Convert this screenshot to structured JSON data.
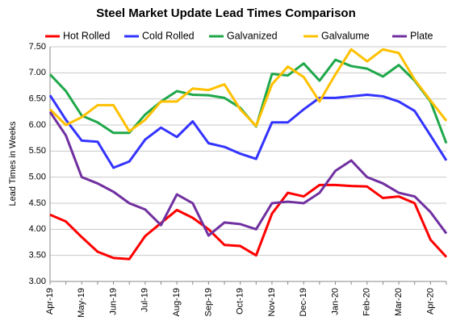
{
  "chart_data": {
    "type": "line",
    "title": "Steel Market Update Lead Times Comparison",
    "y_label": "Lead Times in Weeks",
    "categories": [
      "Apr-19",
      null,
      "May-19",
      null,
      "Jun-19",
      null,
      "Jul-19",
      null,
      "Aug-19",
      null,
      "Sep-19",
      null,
      "Oct-19",
      null,
      "Nov-19",
      null,
      "Dec-19",
      null,
      "Jan-20",
      null,
      "Feb-20",
      null,
      "Mar-20",
      null,
      "Apr-20",
      null
    ],
    "series": [
      {
        "name": "Hot Rolled",
        "color": "#ff0000",
        "values": [
          4.28,
          4.15,
          3.85,
          3.57,
          3.45,
          3.43,
          3.87,
          4.12,
          4.37,
          4.22,
          4.0,
          3.7,
          3.68,
          3.5,
          4.3,
          4.7,
          4.63,
          4.85,
          4.85,
          4.83,
          4.82,
          4.6,
          4.63,
          4.5,
          3.8,
          3.47
        ]
      },
      {
        "name": "Cold Rolled",
        "color": "#3333ff",
        "values": [
          6.57,
          6.1,
          5.7,
          5.68,
          5.18,
          5.3,
          5.72,
          5.95,
          5.77,
          6.07,
          5.65,
          5.58,
          5.45,
          5.35,
          6.05,
          6.05,
          6.3,
          6.52,
          6.52,
          6.55,
          6.58,
          6.55,
          6.45,
          6.27,
          5.8,
          5.32
        ]
      },
      {
        "name": "Galvanized",
        "color": "#1fa84a",
        "values": [
          6.97,
          6.65,
          6.18,
          6.05,
          5.85,
          5.85,
          6.2,
          6.45,
          6.65,
          6.58,
          6.57,
          6.52,
          6.33,
          5.97,
          6.98,
          6.95,
          7.18,
          6.85,
          7.25,
          7.13,
          7.08,
          6.93,
          7.15,
          6.85,
          6.45,
          5.65
        ]
      },
      {
        "name": "Galvalume",
        "color": "#ffc000",
        "values": [
          6.3,
          6.0,
          6.15,
          6.38,
          6.38,
          5.88,
          6.1,
          6.45,
          6.45,
          6.7,
          6.67,
          6.78,
          6.3,
          5.98,
          6.78,
          7.12,
          6.92,
          6.45,
          6.97,
          7.45,
          7.22,
          7.45,
          7.38,
          6.87,
          6.47,
          6.08
        ]
      },
      {
        "name": "Plate",
        "color": "#7030a0",
        "values": [
          6.25,
          5.8,
          5.0,
          4.88,
          4.72,
          4.5,
          4.38,
          4.08,
          4.67,
          4.5,
          3.88,
          4.13,
          4.1,
          4.0,
          4.5,
          4.53,
          4.5,
          4.7,
          5.12,
          5.32,
          5.0,
          4.88,
          4.7,
          4.63,
          4.33,
          3.92
        ]
      }
    ],
    "ylim": [
      3.0,
      7.5
    ],
    "yticks": [
      {
        "value": 3.0,
        "label": "3.00"
      },
      {
        "value": 3.5,
        "label": "3.50"
      },
      {
        "value": 4.0,
        "label": "4.00"
      },
      {
        "value": 4.5,
        "label": "4.50"
      },
      {
        "value": 5.0,
        "label": "5.00"
      },
      {
        "value": 5.5,
        "label": "5.50"
      },
      {
        "value": 6.0,
        "label": "6.00"
      },
      {
        "value": 6.5,
        "label": "6.50"
      },
      {
        "value": 7.0,
        "label": "7.00"
      },
      {
        "value": 7.5,
        "label": "7.50"
      }
    ],
    "grid": true
  }
}
